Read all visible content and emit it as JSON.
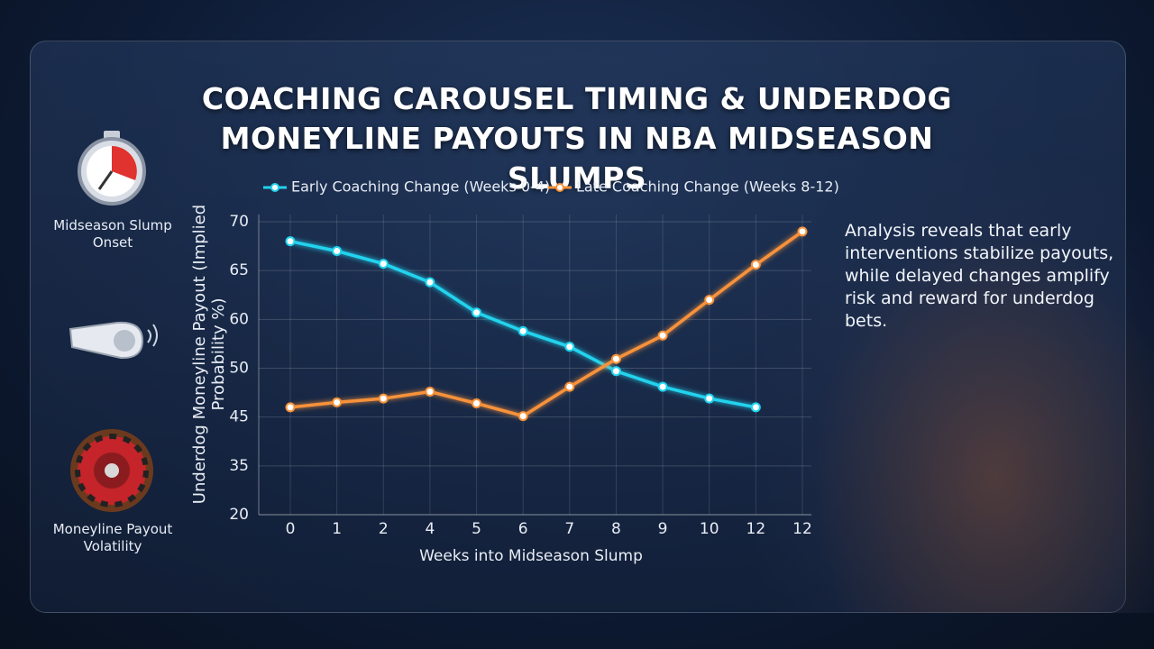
{
  "chart_data": {
    "type": "line",
    "title": "COACHING CAROUSEL TIMING & UNDERDOG MONEYLINE PAYOUTS IN NBA MIDSEASON SLUMPS",
    "xlabel": "Weeks into Midseason Slump",
    "ylabel": "Underdog Moneyline Payout (Implied Probability %)",
    "annotation": "Analysis reveals that early interventions stabilize payouts, while delayed changes amplify risk and reward for underdog bets.",
    "categories": [
      "0",
      "1",
      "2",
      "4",
      "5",
      "6",
      "7",
      "8",
      "9",
      "10",
      "12",
      "12"
    ],
    "series": [
      {
        "name": "Early Coaching Change (Weeks 0-4)",
        "color": "#22d3ee",
        "values": [
          68,
          67,
          65.7,
          63.8,
          60.7,
          57.6,
          54.4,
          49.7,
          48.1,
          46.9,
          46,
          null
        ]
      },
      {
        "name": "Late Coaching Change (Weeks 8-12)",
        "color": "#f7923a",
        "values": [
          46,
          46.5,
          46.9,
          47.6,
          46.4,
          45.1,
          48.1,
          51.9,
          56.7,
          62,
          65.6,
          69
        ]
      }
    ],
    "ylim": [
      20,
      70
    ],
    "yticks": [
      70,
      65,
      60,
      50,
      45,
      35,
      20
    ],
    "grid": true
  },
  "sidebar": [
    {
      "label": "Midseason Slump Onset"
    },
    {
      "label": "Moneyline Payout Volatility"
    }
  ]
}
